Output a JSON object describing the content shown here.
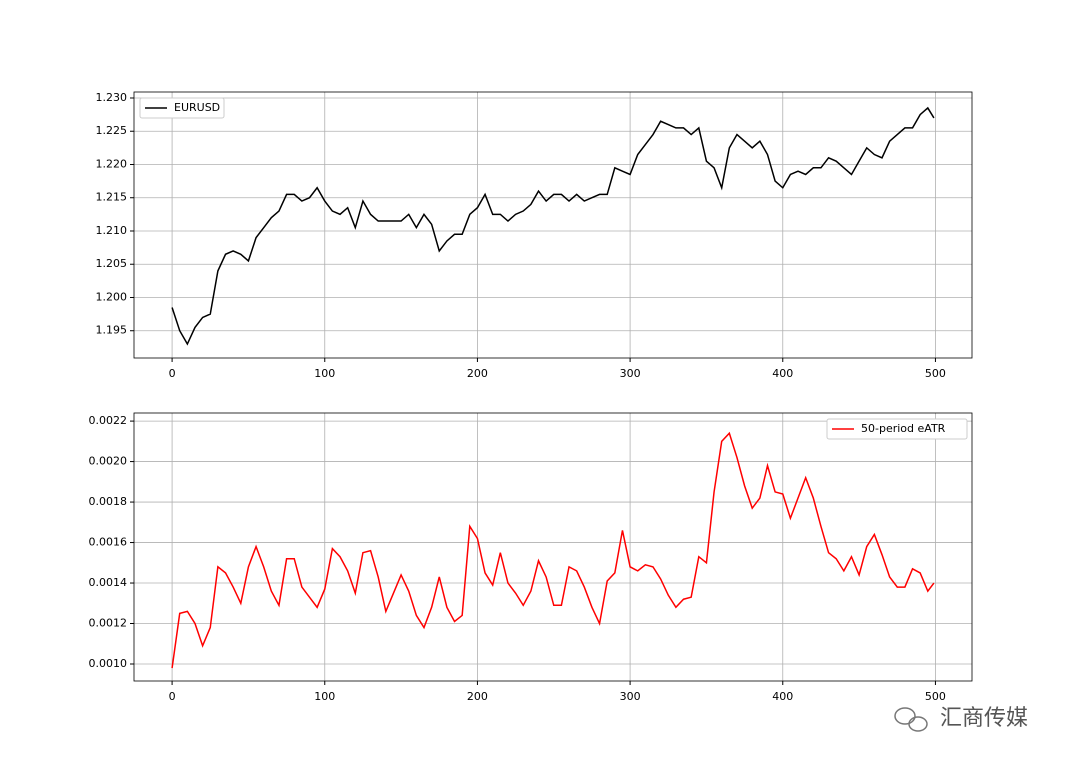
{
  "chart_data": [
    {
      "type": "line",
      "x": [
        0,
        5,
        10,
        15,
        20,
        25,
        30,
        35,
        40,
        45,
        50,
        55,
        60,
        65,
        70,
        75,
        80,
        85,
        90,
        95,
        100,
        105,
        110,
        115,
        120,
        125,
        130,
        135,
        140,
        145,
        150,
        155,
        160,
        165,
        170,
        175,
        180,
        185,
        190,
        195,
        200,
        205,
        210,
        215,
        220,
        225,
        230,
        235,
        240,
        245,
        250,
        255,
        260,
        265,
        270,
        275,
        280,
        285,
        290,
        295,
        300,
        305,
        310,
        315,
        320,
        325,
        330,
        335,
        340,
        345,
        350,
        355,
        360,
        365,
        370,
        375,
        380,
        385,
        390,
        395,
        400,
        405,
        410,
        415,
        420,
        425,
        430,
        435,
        440,
        445,
        450,
        455,
        460,
        465,
        470,
        475,
        480,
        485,
        490,
        495,
        499
      ],
      "series": [
        {
          "name": "EURUSD",
          "color": "#000000",
          "values": [
            1.1985,
            1.195,
            1.193,
            1.1955,
            1.197,
            1.1975,
            1.204,
            1.2065,
            1.207,
            1.2065,
            1.2055,
            1.209,
            1.2105,
            1.212,
            1.213,
            1.2155,
            1.2155,
            1.2145,
            1.215,
            1.2165,
            1.2145,
            1.213,
            1.2125,
            1.2135,
            1.2105,
            1.2145,
            1.2125,
            1.2115,
            1.2115,
            1.2115,
            1.2115,
            1.2125,
            1.2105,
            1.2125,
            1.211,
            1.207,
            1.2085,
            1.2095,
            1.2095,
            1.2125,
            1.2135,
            1.2155,
            1.2125,
            1.2125,
            1.2115,
            1.2125,
            1.213,
            1.214,
            1.216,
            1.2145,
            1.2155,
            1.2155,
            1.2145,
            1.2155,
            1.2145,
            1.215,
            1.2155,
            1.2155,
            1.2195,
            1.219,
            1.2185,
            1.2215,
            1.223,
            1.2245,
            1.2265,
            1.226,
            1.2255,
            1.2255,
            1.2245,
            1.2255,
            1.2205,
            1.2195,
            1.2165,
            1.2225,
            1.2245,
            1.2235,
            1.2225,
            1.2235,
            1.2215,
            1.2175,
            1.2165,
            1.2185,
            1.219,
            1.2185,
            1.2195,
            1.2195,
            1.221,
            1.2205,
            1.2195,
            1.2185,
            1.2205,
            1.2225,
            1.2215,
            1.221,
            1.2235,
            1.2245,
            1.2255,
            1.2255,
            1.2275,
            1.2285,
            1.227
          ]
        }
      ],
      "xlim": [
        -24.95,
        523.95
      ],
      "xticks": [
        0,
        100,
        200,
        300,
        400,
        500
      ],
      "ylim": [
        1.1909,
        1.2309
      ],
      "yticks": [
        {
          "value": 1.195,
          "label": "1.195"
        },
        {
          "value": 1.2,
          "label": "1.200"
        },
        {
          "value": 1.205,
          "label": "1.205"
        },
        {
          "value": 1.21,
          "label": "1.210"
        },
        {
          "value": 1.215,
          "label": "1.215"
        },
        {
          "value": 1.22,
          "label": "1.220"
        },
        {
          "value": 1.225,
          "label": "1.225"
        },
        {
          "value": 1.23,
          "label": "1.230"
        }
      ],
      "grid": true,
      "legend": "upper left"
    },
    {
      "type": "line",
      "x": [
        0,
        5,
        10,
        15,
        20,
        25,
        30,
        35,
        40,
        45,
        50,
        55,
        60,
        65,
        70,
        75,
        80,
        85,
        90,
        95,
        100,
        105,
        110,
        115,
        120,
        125,
        130,
        135,
        140,
        145,
        150,
        155,
        160,
        165,
        170,
        175,
        180,
        185,
        190,
        195,
        200,
        205,
        210,
        215,
        220,
        225,
        230,
        235,
        240,
        245,
        250,
        255,
        260,
        265,
        270,
        275,
        280,
        285,
        290,
        295,
        300,
        305,
        310,
        315,
        320,
        325,
        330,
        335,
        340,
        345,
        350,
        355,
        360,
        365,
        370,
        375,
        380,
        385,
        390,
        395,
        400,
        405,
        410,
        415,
        420,
        425,
        430,
        435,
        440,
        445,
        450,
        455,
        460,
        465,
        470,
        475,
        480,
        485,
        490,
        495,
        499
      ],
      "series": [
        {
          "name": "50-period eATR",
          "color": "#ff0000",
          "values": [
            0.00098,
            0.00125,
            0.00126,
            0.0012,
            0.00109,
            0.00118,
            0.00148,
            0.00145,
            0.00138,
            0.0013,
            0.00148,
            0.00158,
            0.00148,
            0.00136,
            0.00129,
            0.00152,
            0.00152,
            0.00138,
            0.00133,
            0.00128,
            0.00137,
            0.00157,
            0.00153,
            0.00146,
            0.00135,
            0.00155,
            0.00156,
            0.00143,
            0.00126,
            0.00135,
            0.00144,
            0.00136,
            0.00124,
            0.00118,
            0.00128,
            0.00143,
            0.00128,
            0.00121,
            0.00124,
            0.00168,
            0.00162,
            0.00145,
            0.00139,
            0.00155,
            0.0014,
            0.00135,
            0.00129,
            0.00136,
            0.00151,
            0.00143,
            0.00129,
            0.00129,
            0.00148,
            0.00146,
            0.00138,
            0.00128,
            0.0012,
            0.00141,
            0.00145,
            0.00166,
            0.00148,
            0.00146,
            0.00149,
            0.00148,
            0.00142,
            0.00134,
            0.00128,
            0.00132,
            0.00133,
            0.00153,
            0.0015,
            0.00185,
            0.0021,
            0.00214,
            0.00202,
            0.00188,
            0.00177,
            0.00182,
            0.00198,
            0.00185,
            0.00184,
            0.00172,
            0.00182,
            0.00192,
            0.00182,
            0.00168,
            0.00155,
            0.00152,
            0.00146,
            0.00153,
            0.00144,
            0.00158,
            0.00164,
            0.00154,
            0.00143,
            0.00138,
            0.00138,
            0.00147,
            0.00145,
            0.00136,
            0.0014
          ]
        }
      ],
      "xlim": [
        -24.95,
        523.95
      ],
      "xticks": [
        0,
        100,
        200,
        300,
        400,
        500
      ],
      "ylim": [
        0.000916,
        0.00224
      ],
      "yticks": [
        {
          "value": 0.001,
          "label": "0.0010"
        },
        {
          "value": 0.0012,
          "label": "0.0012"
        },
        {
          "value": 0.0014,
          "label": "0.0014"
        },
        {
          "value": 0.0016,
          "label": "0.0016"
        },
        {
          "value": 0.0018,
          "label": "0.0018"
        },
        {
          "value": 0.002,
          "label": "0.0020"
        },
        {
          "value": 0.0022,
          "label": "0.0022"
        }
      ],
      "grid": true,
      "legend": "upper right"
    }
  ],
  "watermark": "汇商传媒"
}
